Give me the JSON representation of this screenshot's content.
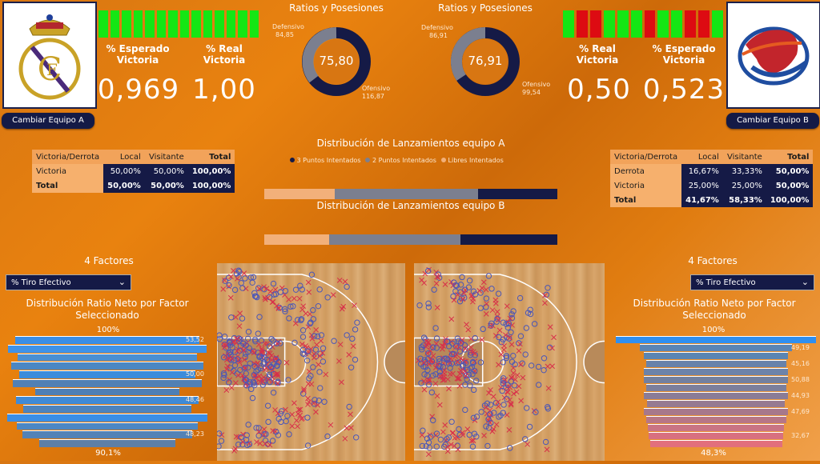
{
  "team_a": {
    "button": "Cambiar Equipo A",
    "expected_label": "% Esperado Victoria",
    "expected_value": "0,969",
    "real_label": "% Real Victoria",
    "real_value": "1,00",
    "streak": [
      "win",
      "win",
      "win",
      "win",
      "win",
      "win",
      "win",
      "win",
      "win",
      "win",
      "win",
      "win",
      "win",
      "win"
    ],
    "logo_icon": "real-madrid-crest"
  },
  "team_b": {
    "button": "Cambiar Equipo B",
    "expected_label": "% Esperado Victoria",
    "expected_value": "0,523",
    "real_label": "% Real Victoria",
    "real_value": "0,50",
    "streak": [
      "win",
      "loss",
      "loss",
      "win",
      "win",
      "win",
      "loss",
      "win",
      "win",
      "loss",
      "loss",
      "win"
    ],
    "logo_icon": "globe-emblem-logo"
  },
  "colors": {
    "win": "#14e614",
    "loss": "#dd0b12",
    "navy": "#151a46",
    "grey": "#7b7f8f",
    "peach": "#f2b07a"
  },
  "donut_a": {
    "title": "Ratios y Posesiones",
    "center": "75,80",
    "defensive_label": "Defensivo",
    "defensive_value": "84,85",
    "offensive_label": "Ofensivo",
    "offensive_value": "116,87"
  },
  "donut_b": {
    "title": "Ratios y Posesiones",
    "center": "76,91",
    "defensive_label": "Defensivo",
    "defensive_value": "86,91",
    "offensive_label": "Ofensivo",
    "offensive_value": "99,54"
  },
  "shots": {
    "title_a": "Distribución de Lanzamientos equipo A",
    "title_b": "Distribución de Lanzamientos equipo B",
    "legend": [
      "3 Puntos Intentados",
      "2 Puntos Intentados",
      "Libres Intentados"
    ],
    "bar_a": [
      {
        "name": "Libres Intentados",
        "share": 0.24
      },
      {
        "name": "2 Puntos Intentados",
        "share": 0.49
      },
      {
        "name": "3 Puntos Intentados",
        "share": 0.27
      }
    ],
    "bar_b": [
      {
        "name": "Libres Intentados",
        "share": 0.22
      },
      {
        "name": "2 Puntos Intentados",
        "share": 0.45
      },
      {
        "name": "3 Puntos Intentados",
        "share": 0.33
      }
    ]
  },
  "matrix_a": {
    "headers": [
      "Victoria/Derrota",
      "Local",
      "Visitante",
      "Total"
    ],
    "rows": [
      {
        "label": "Victoria",
        "local": "50,00%",
        "visit": "50,00%",
        "total": "100,00%"
      },
      {
        "label": "Total",
        "local": "50,00%",
        "visit": "50,00%",
        "total": "100,00%"
      }
    ]
  },
  "matrix_b": {
    "headers": [
      "Victoria/Derrota",
      "Local",
      "Visitante",
      "Total"
    ],
    "rows": [
      {
        "label": "Derrota",
        "local": "16,67%",
        "visit": "33,33%",
        "total": "50,00%"
      },
      {
        "label": "Victoria",
        "local": "25,00%",
        "visit": "25,00%",
        "total": "50,00%"
      },
      {
        "label": "Total",
        "local": "41,67%",
        "visit": "58,33%",
        "total": "100,00%"
      }
    ]
  },
  "factors_a": {
    "title": "4 Factores",
    "dropdown": "% Tiro Efectivo",
    "chart_title": "Distribución Ratio Neto por Factor Seleccionado",
    "top_label": "100%",
    "bottom_label": "90,1%",
    "labels": [
      "53,52",
      "50,00",
      "48,46",
      "48,23"
    ]
  },
  "factors_b": {
    "title": "4 Factores",
    "dropdown": "% Tiro Efectivo",
    "chart_title": "Distribución Ratio Neto por Factor Seleccionado",
    "top_label": "100%",
    "bottom_label": "48,3%",
    "labels": [
      "49,19",
      "45,16",
      "50,88",
      "44,93",
      "47,69",
      "32,67"
    ]
  }
}
